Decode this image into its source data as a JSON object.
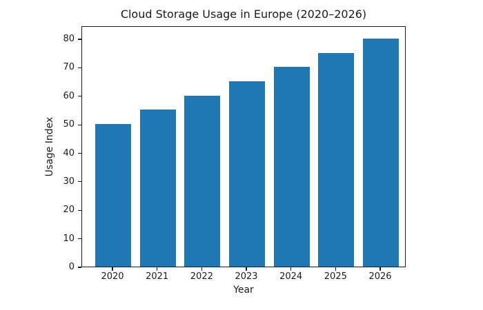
{
  "figure": {
    "background_color": "#ffffff",
    "text_color": "#1a1a1a"
  },
  "chart_data": {
    "type": "bar",
    "title": "Cloud Storage Usage in Europe (2020–2026)",
    "xlabel": "Year",
    "ylabel": "Usage Index",
    "categories": [
      "2020",
      "2021",
      "2022",
      "2023",
      "2024",
      "2025",
      "2026"
    ],
    "values": [
      50,
      55,
      60,
      65,
      70,
      75,
      80
    ],
    "yticks": [
      0,
      10,
      20,
      30,
      40,
      50,
      60,
      70,
      80
    ],
    "ylim": [
      0,
      84.6
    ],
    "bar_color": "#1f77b4",
    "grid": false,
    "legend": "none"
  }
}
